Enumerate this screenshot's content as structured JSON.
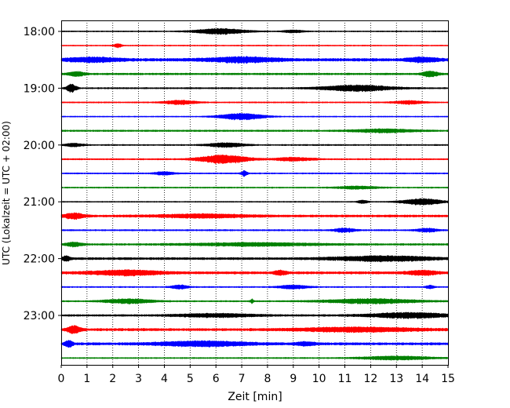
{
  "chart_data": {
    "type": "line",
    "title": "",
    "xlabel": "Zeit  [min]",
    "ylabel": "UTC (Lokalzeit = UTC + 02:00)",
    "xlim": [
      0,
      15
    ],
    "x_ticks": [
      0,
      1,
      2,
      3,
      4,
      5,
      6,
      7,
      8,
      9,
      10,
      11,
      12,
      13,
      14,
      15
    ],
    "y_tick_labels": [
      "18:00",
      "19:00",
      "20:00",
      "21:00",
      "22:00",
      "23:00"
    ],
    "y_tick_rows": [
      0,
      4,
      8,
      12,
      16,
      20
    ],
    "rows_count": 24,
    "trace_interval_min": 15,
    "grid": "vertical-dotted",
    "colors": [
      "#000000",
      "#ff0000",
      "#0000ff",
      "#008000"
    ],
    "series": [
      {
        "start": "18:00",
        "color": "#000000",
        "base_amp": 0.6,
        "bursts": [
          [
            6.2,
            2.6,
            2.8
          ],
          [
            9.0,
            1.0,
            1.4
          ]
        ]
      },
      {
        "start": "18:15",
        "color": "#ff0000",
        "base_amp": 0.6,
        "bursts": [
          [
            2.2,
            0.4,
            1.8
          ]
        ]
      },
      {
        "start": "18:30",
        "color": "#0000ff",
        "base_amp": 1.5,
        "bursts": [
          [
            1.2,
            2.6,
            2.0
          ],
          [
            7.0,
            3.5,
            2.3
          ],
          [
            14.0,
            1.5,
            2.0
          ]
        ]
      },
      {
        "start": "18:45",
        "color": "#008000",
        "base_amp": 1.0,
        "bursts": [
          [
            0.6,
            0.8,
            2.2
          ],
          [
            14.3,
            0.8,
            2.6
          ]
        ]
      },
      {
        "start": "19:00",
        "color": "#000000",
        "base_amp": 0.8,
        "bursts": [
          [
            0.4,
            0.5,
            4.0
          ],
          [
            11.5,
            3.5,
            3.0
          ]
        ]
      },
      {
        "start": "19:15",
        "color": "#ff0000",
        "base_amp": 0.7,
        "bursts": [
          [
            4.6,
            1.6,
            2.0
          ],
          [
            13.5,
            1.5,
            1.6
          ]
        ]
      },
      {
        "start": "19:30",
        "color": "#0000ff",
        "base_amp": 0.6,
        "bursts": [
          [
            7.0,
            2.2,
            3.2
          ]
        ]
      },
      {
        "start": "19:45",
        "color": "#008000",
        "base_amp": 0.9,
        "bursts": [
          [
            12.5,
            3.0,
            1.6
          ]
        ]
      },
      {
        "start": "20:00",
        "color": "#000000",
        "base_amp": 0.7,
        "bursts": [
          [
            0.5,
            0.9,
            1.6
          ],
          [
            6.4,
            1.8,
            2.2
          ]
        ]
      },
      {
        "start": "20:15",
        "color": "#ff0000",
        "base_amp": 0.8,
        "bursts": [
          [
            6.3,
            2.4,
            4.2
          ],
          [
            9.0,
            2.0,
            1.6
          ]
        ]
      },
      {
        "start": "20:30",
        "color": "#0000ff",
        "base_amp": 0.7,
        "bursts": [
          [
            4.0,
            1.0,
            1.6
          ],
          [
            7.1,
            0.3,
            2.6
          ]
        ]
      },
      {
        "start": "20:45",
        "color": "#008000",
        "base_amp": 0.7,
        "bursts": [
          [
            11.5,
            2.0,
            1.4
          ]
        ]
      },
      {
        "start": "21:00",
        "color": "#000000",
        "base_amp": 0.6,
        "bursts": [
          [
            14.0,
            2.0,
            3.2
          ],
          [
            11.7,
            0.5,
            1.6
          ]
        ]
      },
      {
        "start": "21:15",
        "color": "#ff0000",
        "base_amp": 1.2,
        "bursts": [
          [
            0.5,
            1.0,
            2.6
          ],
          [
            5.5,
            4.5,
            1.6
          ]
        ]
      },
      {
        "start": "21:30",
        "color": "#0000ff",
        "base_amp": 0.8,
        "bursts": [
          [
            11.0,
            1.0,
            2.0
          ],
          [
            14.2,
            1.0,
            1.8
          ]
        ]
      },
      {
        "start": "21:45",
        "color": "#008000",
        "base_amp": 1.0,
        "bursts": [
          [
            0.5,
            0.8,
            2.0
          ],
          [
            7.5,
            6.0,
            1.5
          ]
        ]
      },
      {
        "start": "22:00",
        "color": "#000000",
        "base_amp": 1.2,
        "bursts": [
          [
            0.2,
            0.4,
            2.6
          ],
          [
            12.5,
            5.0,
            2.4
          ]
        ]
      },
      {
        "start": "22:15",
        "color": "#ff0000",
        "base_amp": 1.3,
        "bursts": [
          [
            2.5,
            3.5,
            2.4
          ],
          [
            8.5,
            0.6,
            2.0
          ],
          [
            14.0,
            1.5,
            2.0
          ]
        ]
      },
      {
        "start": "22:30",
        "color": "#0000ff",
        "base_amp": 0.7,
        "bursts": [
          [
            4.6,
            0.8,
            2.0
          ],
          [
            9.0,
            1.5,
            1.8
          ],
          [
            14.3,
            0.4,
            1.6
          ]
        ]
      },
      {
        "start": "22:45",
        "color": "#008000",
        "base_amp": 0.8,
        "bursts": [
          [
            2.6,
            2.4,
            2.2
          ],
          [
            12.0,
            4.5,
            2.4
          ],
          [
            7.4,
            0.15,
            2.0
          ]
        ]
      },
      {
        "start": "23:00",
        "color": "#000000",
        "base_amp": 1.0,
        "bursts": [
          [
            6.0,
            4.0,
            1.6
          ],
          [
            13.5,
            4.0,
            2.6
          ]
        ]
      },
      {
        "start": "23:15",
        "color": "#ff0000",
        "base_amp": 1.3,
        "bursts": [
          [
            0.5,
            0.7,
            3.6
          ],
          [
            11.5,
            6.0,
            2.0
          ]
        ]
      },
      {
        "start": "23:30",
        "color": "#0000ff",
        "base_amp": 1.3,
        "bursts": [
          [
            0.3,
            0.4,
            3.0
          ],
          [
            5.5,
            4.5,
            2.4
          ],
          [
            9.5,
            1.0,
            1.6
          ]
        ]
      },
      {
        "start": "23:45",
        "color": "#008000",
        "base_amp": 0.7,
        "bursts": [
          [
            13.0,
            3.5,
            1.8
          ]
        ]
      }
    ]
  }
}
